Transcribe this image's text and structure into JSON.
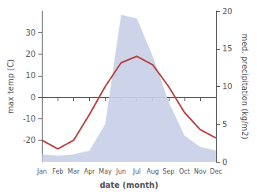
{
  "chart_data": {
    "type": "line",
    "xlabel": "date (month)",
    "ylabel": "max temp (C)",
    "y2label": "med. precipitation (kg/m2)",
    "categories": [
      "Jan",
      "Feb",
      "Mar",
      "Apr",
      "May",
      "Jun",
      "Jul",
      "Aug",
      "Sep",
      "Oct",
      "Nov",
      "Dec"
    ],
    "series": [
      {
        "type": "area",
        "axis": "y2",
        "color": "#c8cfe8",
        "values": [
          1.0,
          0.8,
          1.0,
          1.5,
          5.0,
          19.5,
          19.0,
          14.0,
          8.0,
          3.5,
          2.0,
          1.5
        ]
      },
      {
        "type": "line",
        "color": "#b94040",
        "values": [
          -20,
          -24,
          -20,
          -8,
          5,
          16,
          19,
          15,
          5,
          -7,
          -15,
          -19
        ]
      }
    ],
    "ylim": [
      -30,
      40
    ],
    "yticks": [
      -20,
      -10,
      0,
      10,
      20,
      30
    ],
    "y2lim": [
      0,
      20
    ],
    "y2ticks": [
      0,
      5,
      10,
      15,
      20
    ],
    "grid": false
  }
}
